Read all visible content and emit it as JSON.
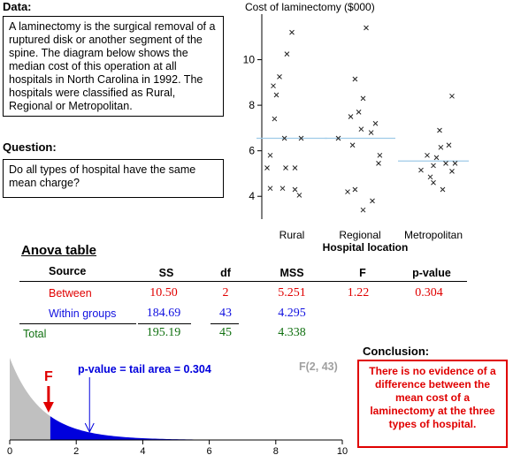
{
  "data_section": {
    "heading": "Data:",
    "text": "A laminectomy is the surgical removal of a ruptured disk or another segment of the spine. The diagram below shows the median cost of this operation at all hospitals in North Carolina in 1992. The hospitals were classified as Rural, Regional or Metropolitan."
  },
  "question_section": {
    "heading": "Question:",
    "text": "Do all types of hospital have the same mean charge?"
  },
  "conclusion_section": {
    "heading": "Conclusion:",
    "text": "There is no evidence of a difference between the mean cost of a laminectomy at the three types of hospital."
  },
  "anova": {
    "title": "Anova table",
    "headers": {
      "source": "Source",
      "ss": "SS",
      "df": "df",
      "mss": "MSS",
      "f": "F",
      "p": "p-value"
    },
    "between": {
      "label": "Between",
      "ss": "10.50",
      "df": "2",
      "mss": "5.251",
      "f": "1.22",
      "p": "0.304"
    },
    "within": {
      "label": "Within groups",
      "ss": "184.69",
      "df": "43",
      "mss": "4.295"
    },
    "total": {
      "label": "Total",
      "ss": "195.19",
      "df": "45",
      "mss": "4.338"
    }
  },
  "colors": {
    "between": "#e00000",
    "within": "#1010e0",
    "total": "#107010",
    "tail": "#0000dd",
    "body": "#c0c0c0",
    "mean_line": "#9ecae8"
  },
  "chart_data": [
    {
      "type": "scatter",
      "title": "Cost of laminectomy ($000)",
      "xlabel": "Hospital location",
      "ylabel": "",
      "categories": [
        "Rural",
        "Regional",
        "Metropolitan"
      ],
      "ylim": [
        3,
        12
      ],
      "yticks": [
        4,
        6,
        8,
        10
      ],
      "grid": false,
      "points": [
        [
          [
            0.0,
            11.2
          ],
          [
            -0.08,
            10.25
          ],
          [
            -0.2,
            9.25
          ],
          [
            -0.3,
            8.85
          ],
          [
            -0.25,
            8.45
          ],
          [
            -0.28,
            7.4
          ],
          [
            -0.12,
            6.55
          ],
          [
            0.15,
            6.55
          ],
          [
            -0.35,
            5.8
          ],
          [
            -0.4,
            5.25
          ],
          [
            -0.1,
            5.25
          ],
          [
            0.05,
            5.25
          ],
          [
            -0.15,
            4.35
          ],
          [
            -0.35,
            4.35
          ],
          [
            0.05,
            4.3
          ],
          [
            0.12,
            4.05
          ]
        ],
        [
          [
            0.1,
            11.4
          ],
          [
            -0.08,
            9.15
          ],
          [
            0.05,
            8.3
          ],
          [
            -0.15,
            7.5
          ],
          [
            -0.02,
            7.7
          ],
          [
            0.25,
            7.2
          ],
          [
            0.02,
            6.95
          ],
          [
            0.18,
            6.8
          ],
          [
            -0.35,
            6.55
          ],
          [
            -0.12,
            6.25
          ],
          [
            0.32,
            5.8
          ],
          [
            0.3,
            5.45
          ],
          [
            -0.2,
            4.2
          ],
          [
            -0.08,
            4.3
          ],
          [
            0.2,
            3.8
          ],
          [
            0.05,
            3.4
          ]
        ],
        [
          [
            0.3,
            8.4
          ],
          [
            0.1,
            6.9
          ],
          [
            0.25,
            6.25
          ],
          [
            0.12,
            6.15
          ],
          [
            -0.1,
            5.8
          ],
          [
            0.05,
            5.7
          ],
          [
            0.2,
            5.45
          ],
          [
            0.35,
            5.45
          ],
          [
            0.0,
            5.35
          ],
          [
            -0.2,
            5.15
          ],
          [
            0.3,
            5.1
          ],
          [
            -0.05,
            4.85
          ],
          [
            0.0,
            4.6
          ],
          [
            0.15,
            4.3
          ]
        ]
      ],
      "means": [
        6.55,
        6.55,
        5.55
      ]
    },
    {
      "type": "area",
      "title": "F(2, 43)",
      "distribution": "F",
      "df": [
        2,
        43
      ],
      "xlim": [
        0,
        10
      ],
      "xticks": [
        0,
        2,
        4,
        6,
        8,
        10
      ],
      "f_value": 1.22,
      "f_label": "F",
      "annotation": "p-value = tail area = 0.304",
      "annotation_x": 2.4
    }
  ]
}
